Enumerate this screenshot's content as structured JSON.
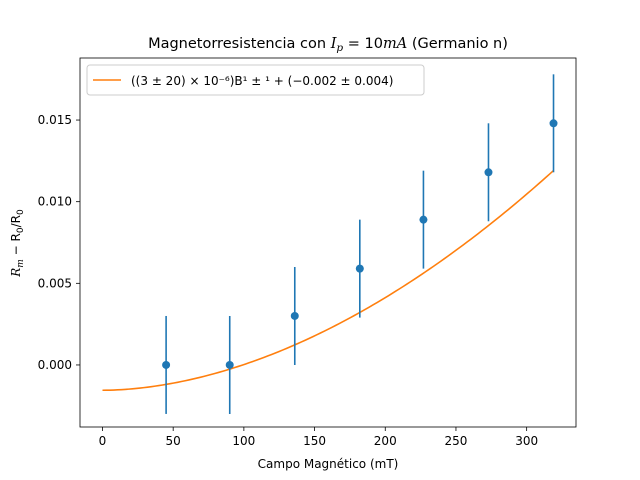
{
  "chart_data": {
    "type": "scatter",
    "title_prefix": "Magnetorresistencia con ",
    "title_var": "I",
    "title_var_sub": "p",
    "title_eq": " = 10",
    "title_unit": "mA",
    "title_suffix": " (Germanio n)",
    "xlabel": "Campo Magnético (mT)",
    "ylabel_parts": {
      "r": "R",
      "r_sub": "m",
      "mid": " − R",
      "mid_sub": "0",
      "slash": "/R",
      "end_sub": "0"
    },
    "xlim": [
      -15.9,
      334.9
    ],
    "ylim": [
      -0.0038,
      0.0188
    ],
    "x_ticks": [
      0,
      50,
      100,
      150,
      200,
      250,
      300
    ],
    "x_tick_labels": [
      "0",
      "50",
      "100",
      "150",
      "200",
      "250",
      "300"
    ],
    "y_ticks": [
      0.0,
      0.005,
      0.01,
      0.015
    ],
    "y_tick_labels": [
      "0.000",
      "0.005",
      "0.010",
      "0.015"
    ],
    "grid": false,
    "legend_position": "top-left",
    "legend_label": "((3 ± 20) × 10⁻⁶)B¹ ± ¹ + (−0.002 ± 0.004)",
    "series": [
      {
        "kind": "points",
        "x": [
          45,
          90,
          136,
          182,
          227,
          273,
          319
        ],
        "y": [
          0.0,
          0.0,
          0.003,
          0.0059,
          0.0089,
          0.0118,
          0.0148
        ],
        "yerr": [
          0.003,
          0.003,
          0.003,
          0.003,
          0.003,
          0.003,
          0.003
        ],
        "color": "#1f77b4"
      },
      {
        "kind": "fit",
        "x_range": [
          0,
          319
        ],
        "a": 3.14e-07,
        "exponent": 1.85,
        "c": -0.00155,
        "color": "#ff7f0e"
      }
    ]
  }
}
